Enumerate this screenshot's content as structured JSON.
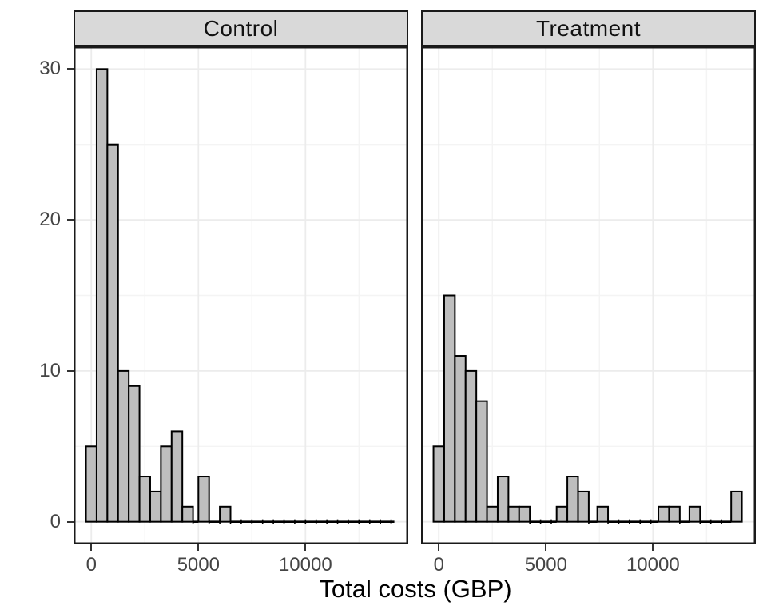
{
  "chart_data": {
    "type": "bar",
    "subtype": "faceted-histogram",
    "title": "",
    "xlabel": "Total costs (GBP)",
    "ylabel": "",
    "legend_position": "none",
    "grid": true,
    "binwidth": 500,
    "xlim": [
      -830,
      14800
    ],
    "ylim": [
      -1.5,
      31.5
    ],
    "x_ticks": [
      {
        "value": 0,
        "label": "0"
      },
      {
        "value": 5000,
        "label": "5000"
      },
      {
        "value": 10000,
        "label": "10000"
      }
    ],
    "y_ticks": [
      {
        "value": 0,
        "label": "0"
      },
      {
        "value": 10,
        "label": "10"
      },
      {
        "value": 20,
        "label": "20"
      },
      {
        "value": 30,
        "label": "30"
      }
    ],
    "x_minor_gridlines": [
      2500,
      7500,
      12500
    ],
    "y_minor_gridlines": [
      5,
      15,
      25
    ],
    "facets": [
      {
        "label": "Control",
        "bins": [
          {
            "x": 0,
            "count": 5
          },
          {
            "x": 500,
            "count": 30
          },
          {
            "x": 1000,
            "count": 25
          },
          {
            "x": 1500,
            "count": 10
          },
          {
            "x": 2000,
            "count": 9
          },
          {
            "x": 2500,
            "count": 3
          },
          {
            "x": 3000,
            "count": 2
          },
          {
            "x": 3500,
            "count": 5
          },
          {
            "x": 4000,
            "count": 6
          },
          {
            "x": 4500,
            "count": 1
          },
          {
            "x": 5250,
            "count": 3
          },
          {
            "x": 6250,
            "count": 1
          }
        ],
        "zero_segments": [
          [
            4750,
            5000
          ],
          [
            5500,
            6000
          ],
          [
            6500,
            14150
          ]
        ]
      },
      {
        "label": "Treatment",
        "bins": [
          {
            "x": 0,
            "count": 5
          },
          {
            "x": 500,
            "count": 15
          },
          {
            "x": 1000,
            "count": 11
          },
          {
            "x": 1500,
            "count": 10
          },
          {
            "x": 2000,
            "count": 8
          },
          {
            "x": 2500,
            "count": 1
          },
          {
            "x": 3000,
            "count": 3
          },
          {
            "x": 3500,
            "count": 1
          },
          {
            "x": 4000,
            "count": 1
          },
          {
            "x": 5750,
            "count": 1
          },
          {
            "x": 6250,
            "count": 3
          },
          {
            "x": 6750,
            "count": 2
          },
          {
            "x": 7650,
            "count": 1
          },
          {
            "x": 10500,
            "count": 1
          },
          {
            "x": 11000,
            "count": 1
          },
          {
            "x": 11950,
            "count": 1
          },
          {
            "x": 13900,
            "count": 2
          }
        ],
        "zero_segments": [
          [
            4250,
            5500
          ],
          [
            7000,
            7400
          ],
          [
            7900,
            10250
          ],
          [
            11250,
            11700
          ],
          [
            12200,
            13650
          ]
        ]
      }
    ],
    "colors": {
      "bar_fill": "#BEBEBE",
      "bar_stroke": "#000000",
      "strip_fill": "#D9D9D9",
      "panel_border": "#1A1A1A",
      "grid_major": "#ECECEC",
      "grid_minor": "#F4F4F4",
      "tick_label": "#454545",
      "axis_title": "#000000"
    }
  }
}
